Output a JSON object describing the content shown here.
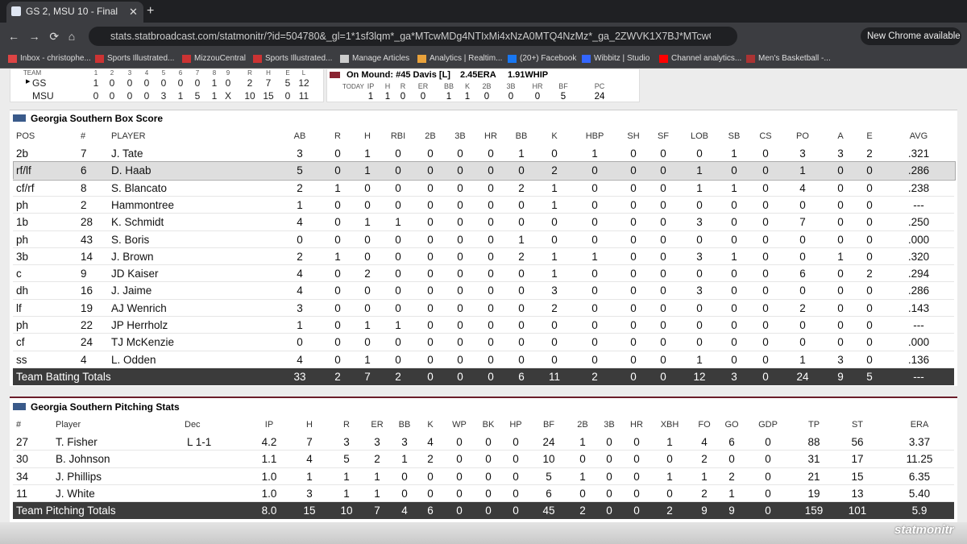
{
  "browser": {
    "tab_title": "GS 2, MSU 10 - Final",
    "url": "stats.statbroadcast.com/statmonitr/?id=504780&_gl=1*1sf3lqm*_ga*MTcwMDg4NTIxMi4xNzA0MTQ4NzMz*_ga_2ZWVK1X7BJ*MTcwODkzNDgzNS43LjEuM...",
    "update_button": "New Chrome available",
    "bookmarks": [
      "Inbox - christophe...",
      "Sports Illustrated...",
      "MizzouCentral",
      "Sports Illustrated...",
      "Manage Articles",
      "Analytics | Realtim...",
      "(20+) Facebook",
      "Wibbitz | Studio",
      "Channel analytics...",
      "Men's Basketball -..."
    ]
  },
  "linescore": {
    "header": [
      "TEAM",
      "1",
      "2",
      "3",
      "4",
      "5",
      "6",
      "7",
      "8",
      "9",
      "R",
      "H",
      "E",
      "L"
    ],
    "rows": [
      [
        "GS",
        "1",
        "0",
        "0",
        "0",
        "0",
        "0",
        "0",
        "1",
        "0",
        "2",
        "7",
        "5",
        "12"
      ],
      [
        "MSU",
        "0",
        "0",
        "0",
        "0",
        "3",
        "1",
        "5",
        "1",
        "X",
        "10",
        "15",
        "0",
        "11"
      ]
    ]
  },
  "pitcher_box": {
    "label": "On Mound: #45 Davis [L]",
    "era": "2.45ERA",
    "whip": "1.91WHIP",
    "today": "TODAY",
    "header": [
      "IP",
      "H",
      "R",
      "ER",
      "BB",
      "K",
      "2B",
      "3B",
      "HR",
      "BF",
      "PC"
    ],
    "values": [
      "1",
      "1",
      "0",
      "0",
      "1",
      "1",
      "0",
      "0",
      "0",
      "5",
      "24"
    ]
  },
  "batting": {
    "title": "Georgia Southern Box Score",
    "header": [
      "POS",
      "#",
      "PLAYER",
      "AB",
      "R",
      "H",
      "RBI",
      "2B",
      "3B",
      "HR",
      "BB",
      "K",
      "HBP",
      "SH",
      "SF",
      "LOB",
      "SB",
      "CS",
      "PO",
      "A",
      "E",
      "AVG"
    ],
    "rows": [
      [
        "2b",
        "7",
        "J. Tate",
        "3",
        "0",
        "1",
        "0",
        "0",
        "0",
        "0",
        "1",
        "0",
        "1",
        "0",
        "0",
        "0",
        "1",
        "0",
        "3",
        "3",
        "2",
        ".321"
      ],
      [
        "rf/lf",
        "6",
        "D. Haab",
        "5",
        "0",
        "1",
        "0",
        "0",
        "0",
        "0",
        "0",
        "2",
        "0",
        "0",
        "0",
        "1",
        "0",
        "0",
        "1",
        "0",
        "0",
        ".286"
      ],
      [
        "cf/rf",
        "8",
        "S. Blancato",
        "2",
        "1",
        "0",
        "0",
        "0",
        "0",
        "0",
        "2",
        "1",
        "0",
        "0",
        "0",
        "1",
        "1",
        "0",
        "4",
        "0",
        "0",
        ".238"
      ],
      [
        "ph",
        "2",
        "Hammontree",
        "1",
        "0",
        "0",
        "0",
        "0",
        "0",
        "0",
        "0",
        "1",
        "0",
        "0",
        "0",
        "0",
        "0",
        "0",
        "0",
        "0",
        "0",
        "---"
      ],
      [
        "1b",
        "28",
        "K. Schmidt",
        "4",
        "0",
        "1",
        "1",
        "0",
        "0",
        "0",
        "0",
        "0",
        "0",
        "0",
        "0",
        "3",
        "0",
        "0",
        "7",
        "0",
        "0",
        ".250"
      ],
      [
        "ph",
        "43",
        "S. Boris",
        "0",
        "0",
        "0",
        "0",
        "0",
        "0",
        "0",
        "1",
        "0",
        "0",
        "0",
        "0",
        "0",
        "0",
        "0",
        "0",
        "0",
        "0",
        ".000"
      ],
      [
        "3b",
        "14",
        "J. Brown",
        "2",
        "1",
        "0",
        "0",
        "0",
        "0",
        "0",
        "2",
        "1",
        "1",
        "0",
        "0",
        "3",
        "1",
        "0",
        "0",
        "1",
        "0",
        ".320"
      ],
      [
        "c",
        "9",
        "JD Kaiser",
        "4",
        "0",
        "2",
        "0",
        "0",
        "0",
        "0",
        "0",
        "1",
        "0",
        "0",
        "0",
        "0",
        "0",
        "0",
        "6",
        "0",
        "2",
        ".294"
      ],
      [
        "dh",
        "16",
        "J. Jaime",
        "4",
        "0",
        "0",
        "0",
        "0",
        "0",
        "0",
        "0",
        "3",
        "0",
        "0",
        "0",
        "3",
        "0",
        "0",
        "0",
        "0",
        "0",
        ".286"
      ],
      [
        "lf",
        "19",
        "AJ Wenrich",
        "3",
        "0",
        "0",
        "0",
        "0",
        "0",
        "0",
        "0",
        "2",
        "0",
        "0",
        "0",
        "0",
        "0",
        "0",
        "2",
        "0",
        "0",
        ".143"
      ],
      [
        "ph",
        "22",
        "JP Herrholz",
        "1",
        "0",
        "1",
        "1",
        "0",
        "0",
        "0",
        "0",
        "0",
        "0",
        "0",
        "0",
        "0",
        "0",
        "0",
        "0",
        "0",
        "0",
        "---"
      ],
      [
        "cf",
        "24",
        "TJ McKenzie",
        "0",
        "0",
        "0",
        "0",
        "0",
        "0",
        "0",
        "0",
        "0",
        "0",
        "0",
        "0",
        "0",
        "0",
        "0",
        "0",
        "0",
        "0",
        ".000"
      ],
      [
        "ss",
        "4",
        "L. Odden",
        "4",
        "0",
        "1",
        "0",
        "0",
        "0",
        "0",
        "0",
        "0",
        "0",
        "0",
        "0",
        "1",
        "0",
        "0",
        "1",
        "3",
        "0",
        ".136"
      ]
    ],
    "totals": [
      "Team Batting Totals",
      "33",
      "2",
      "7",
      "2",
      "0",
      "0",
      "0",
      "6",
      "11",
      "2",
      "0",
      "0",
      "12",
      "3",
      "0",
      "24",
      "9",
      "5",
      "---"
    ]
  },
  "pitching": {
    "title": "Georgia Southern Pitching Stats",
    "header": [
      "#",
      "Player",
      "Dec",
      "IP",
      "H",
      "R",
      "ER",
      "BB",
      "K",
      "WP",
      "BK",
      "HP",
      "BF",
      "2B",
      "3B",
      "HR",
      "XBH",
      "FO",
      "GO",
      "GDP",
      "TP",
      "ST",
      "ERA"
    ],
    "rows": [
      [
        "27",
        "T. Fisher",
        "L 1-1",
        "4.2",
        "7",
        "3",
        "3",
        "3",
        "4",
        "0",
        "0",
        "0",
        "24",
        "1",
        "0",
        "0",
        "1",
        "4",
        "6",
        "0",
        "88",
        "56",
        "3.37"
      ],
      [
        "30",
        "B. Johnson",
        null,
        "1.1",
        "4",
        "5",
        "2",
        "1",
        "2",
        "0",
        "0",
        "0",
        "10",
        "0",
        "0",
        "0",
        "0",
        "2",
        "0",
        "0",
        "31",
        "17",
        "11.25"
      ],
      [
        "34",
        "J. Phillips",
        null,
        "1.0",
        "1",
        "1",
        "1",
        "0",
        "0",
        "0",
        "0",
        "0",
        "5",
        "1",
        "0",
        "0",
        "1",
        "1",
        "2",
        "0",
        "21",
        "15",
        "6.35"
      ],
      [
        "11",
        "J. White",
        null,
        "1.0",
        "3",
        "1",
        "1",
        "0",
        "0",
        "0",
        "0",
        "0",
        "6",
        "0",
        "0",
        "0",
        "0",
        "2",
        "1",
        "0",
        "19",
        "13",
        "5.40"
      ]
    ],
    "totals": [
      "Team Pitching Totals",
      "8.0",
      "15",
      "10",
      "7",
      "4",
      "6",
      "0",
      "0",
      "0",
      "45",
      "2",
      "0",
      "0",
      "2",
      "9",
      "9",
      "0",
      "159",
      "101",
      "5.9"
    ]
  },
  "logo": "statmonitr"
}
